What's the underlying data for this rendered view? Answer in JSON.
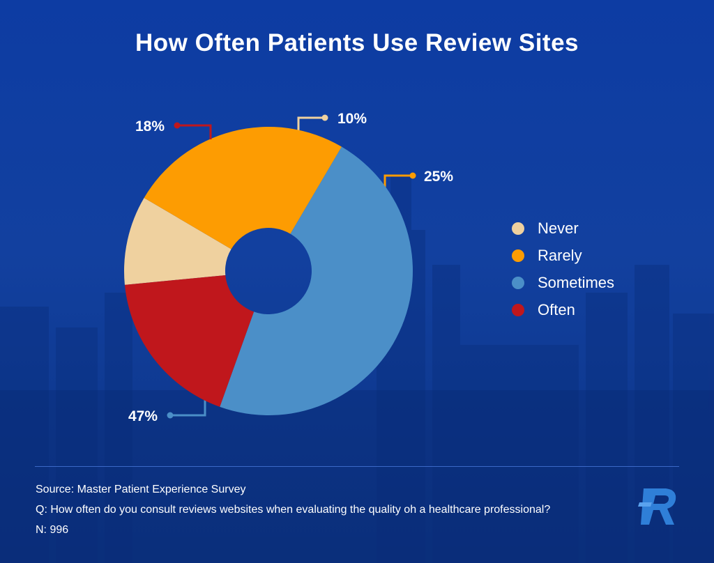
{
  "title": "How Often Patients Use Review Sites",
  "colors": {
    "never": "#efd19f",
    "rarely": "#fd9c02",
    "sometimes": "#4b8fc8",
    "often": "#c0171c",
    "background": "#0f3ea0"
  },
  "chart_data": {
    "type": "pie",
    "donut": true,
    "categories": [
      "Never",
      "Rarely",
      "Sometimes",
      "Often"
    ],
    "values": [
      10,
      25,
      47,
      18
    ],
    "labels": [
      "10%",
      "25%",
      "47%",
      "18%"
    ],
    "legend": "right",
    "unit": "%"
  },
  "legend_items": [
    {
      "label": "Never",
      "color": "#efd19f"
    },
    {
      "label": "Rarely",
      "color": "#fd9c02"
    },
    {
      "label": "Sometimes",
      "color": "#4b8fc8"
    },
    {
      "label": "Often",
      "color": "#c0171c"
    }
  ],
  "footer": {
    "source": "Source: Master Patient Experience Survey",
    "question": "Q: How often do you consult reviews websites when evaluating the quality oh a healthcare professional?",
    "n": "N: 996"
  },
  "logo_icon": "r-logo-icon"
}
